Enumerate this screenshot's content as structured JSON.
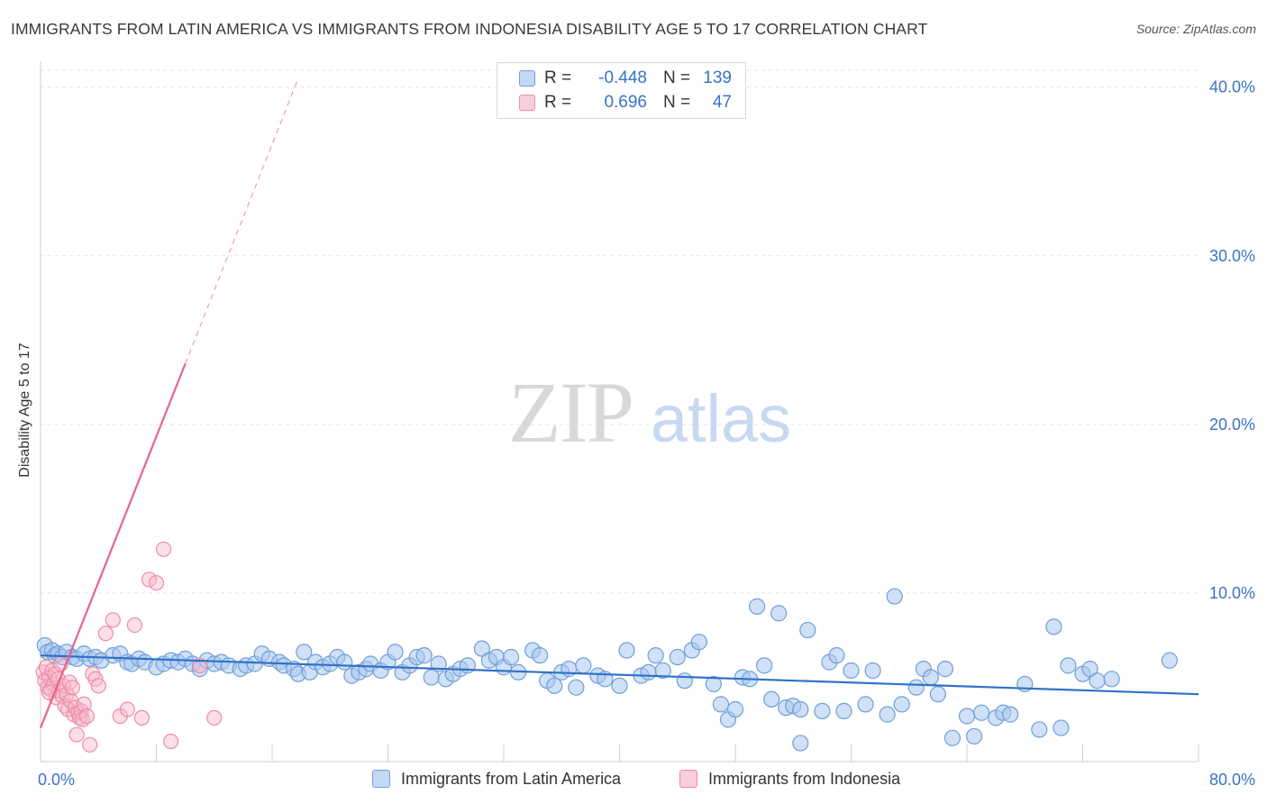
{
  "title": "IMMIGRANTS FROM LATIN AMERICA VS IMMIGRANTS FROM INDONESIA DISABILITY AGE 5 TO 17 CORRELATION CHART",
  "source": "Source: ZipAtlas.com",
  "watermark": {
    "zip": "ZIP",
    "atlas": "atlas"
  },
  "colors": {
    "blue_fill": "#a9c7ef",
    "blue_stroke": "#6f9fd8",
    "blue_line": "#2f72c8",
    "pink_fill": "#f7b7ca",
    "pink_stroke": "#ef8aa8",
    "pink_line": "#e8638f",
    "value_text": "#3a72c8",
    "grid": "#e3e3e3"
  },
  "legend": {
    "rows": [
      {
        "r_label": "R =",
        "r_value": "-0.448",
        "n_label": "N =",
        "n_value": "139"
      },
      {
        "r_label": "R =",
        "r_value": "0.696",
        "n_label": "N =",
        "n_value": "47"
      }
    ]
  },
  "bottom_legend": {
    "series1": "Immigrants from Latin America",
    "series2": "Immigrants from Indonesia"
  },
  "chart_data": {
    "type": "scatter",
    "title": "IMMIGRANTS FROM LATIN AMERICA VS IMMIGRANTS FROM INDONESIA DISABILITY AGE 5 TO 17 CORRELATION CHART",
    "xlabel": "",
    "ylabel": "Disability Age 5 to 17",
    "xlim": [
      0,
      80
    ],
    "ylim": [
      0,
      41
    ],
    "x_ticks_labeled": [
      {
        "value": 0,
        "label": "0.0%"
      },
      {
        "value": 80,
        "label": "80.0%"
      }
    ],
    "y_ticks": [
      {
        "value": 10,
        "label": "10.0%"
      },
      {
        "value": 20,
        "label": "20.0%"
      },
      {
        "value": 30,
        "label": "30.0%"
      },
      {
        "value": 40,
        "label": "40.0%"
      }
    ],
    "x_minor_ticks": [
      0,
      8,
      16,
      24,
      32,
      40,
      48,
      56,
      64,
      72,
      80
    ],
    "series": [
      {
        "name": "Immigrants from Latin America",
        "r": -0.448,
        "n": 139,
        "trend": {
          "x": [
            0,
            80
          ],
          "y": [
            6.3,
            4.0
          ]
        },
        "points": [
          [
            0.3,
            6.9
          ],
          [
            0.5,
            6.5
          ],
          [
            0.8,
            6.6
          ],
          [
            1.0,
            6.3
          ],
          [
            1.2,
            6.4
          ],
          [
            1.5,
            6.2
          ],
          [
            1.8,
            6.5
          ],
          [
            2.2,
            6.2
          ],
          [
            2.5,
            6.1
          ],
          [
            3.0,
            6.4
          ],
          [
            3.4,
            6.1
          ],
          [
            3.8,
            6.2
          ],
          [
            4.2,
            6.0
          ],
          [
            5.0,
            6.3
          ],
          [
            5.5,
            6.4
          ],
          [
            6.0,
            5.9
          ],
          [
            6.3,
            5.8
          ],
          [
            6.8,
            6.1
          ],
          [
            7.2,
            5.9
          ],
          [
            8.0,
            5.6
          ],
          [
            8.5,
            5.8
          ],
          [
            9.0,
            6.0
          ],
          [
            9.5,
            5.9
          ],
          [
            10.0,
            6.1
          ],
          [
            10.5,
            5.8
          ],
          [
            11.0,
            5.5
          ],
          [
            11.5,
            6.0
          ],
          [
            12.0,
            5.8
          ],
          [
            12.5,
            5.9
          ],
          [
            13.0,
            5.7
          ],
          [
            13.8,
            5.5
          ],
          [
            14.2,
            5.7
          ],
          [
            14.8,
            5.8
          ],
          [
            15.3,
            6.4
          ],
          [
            15.8,
            6.1
          ],
          [
            16.5,
            5.9
          ],
          [
            16.8,
            5.7
          ],
          [
            17.5,
            5.5
          ],
          [
            17.8,
            5.2
          ],
          [
            18.2,
            6.5
          ],
          [
            18.6,
            5.3
          ],
          [
            19.0,
            5.9
          ],
          [
            19.5,
            5.6
          ],
          [
            20.0,
            5.8
          ],
          [
            20.5,
            6.2
          ],
          [
            21.0,
            5.9
          ],
          [
            21.5,
            5.1
          ],
          [
            22.0,
            5.3
          ],
          [
            22.5,
            5.5
          ],
          [
            22.8,
            5.8
          ],
          [
            23.5,
            5.4
          ],
          [
            24.0,
            5.9
          ],
          [
            24.5,
            6.5
          ],
          [
            25.0,
            5.3
          ],
          [
            25.5,
            5.7
          ],
          [
            26.0,
            6.2
          ],
          [
            26.5,
            6.3
          ],
          [
            27.0,
            5.0
          ],
          [
            27.5,
            5.8
          ],
          [
            28.0,
            4.9
          ],
          [
            28.5,
            5.2
          ],
          [
            29.0,
            5.5
          ],
          [
            29.5,
            5.7
          ],
          [
            30.5,
            6.7
          ],
          [
            31.0,
            6.0
          ],
          [
            31.5,
            6.2
          ],
          [
            32.0,
            5.6
          ],
          [
            32.5,
            6.2
          ],
          [
            33.0,
            5.3
          ],
          [
            34.0,
            6.6
          ],
          [
            34.5,
            6.3
          ],
          [
            35.0,
            4.8
          ],
          [
            35.5,
            4.5
          ],
          [
            36.0,
            5.3
          ],
          [
            36.5,
            5.5
          ],
          [
            37.0,
            4.4
          ],
          [
            37.5,
            5.7
          ],
          [
            38.5,
            5.1
          ],
          [
            39.0,
            4.9
          ],
          [
            40.0,
            4.5
          ],
          [
            40.5,
            6.6
          ],
          [
            41.5,
            5.1
          ],
          [
            42.0,
            5.3
          ],
          [
            42.5,
            6.3
          ],
          [
            43.0,
            5.4
          ],
          [
            44.0,
            6.2
          ],
          [
            44.5,
            4.8
          ],
          [
            45.0,
            6.6
          ],
          [
            45.5,
            7.1
          ],
          [
            46.5,
            4.6
          ],
          [
            47.0,
            3.4
          ],
          [
            47.5,
            2.5
          ],
          [
            48.0,
            3.1
          ],
          [
            48.5,
            5.0
          ],
          [
            49.0,
            4.9
          ],
          [
            49.5,
            9.2
          ],
          [
            50.0,
            5.7
          ],
          [
            50.5,
            3.7
          ],
          [
            51.0,
            8.8
          ],
          [
            51.5,
            3.2
          ],
          [
            52.0,
            3.3
          ],
          [
            52.5,
            3.1
          ],
          [
            53.0,
            7.8
          ],
          [
            54.0,
            3.0
          ],
          [
            54.5,
            5.9
          ],
          [
            55.0,
            6.3
          ],
          [
            55.5,
            3.0
          ],
          [
            56.0,
            5.4
          ],
          [
            57.0,
            3.4
          ],
          [
            57.5,
            5.4
          ],
          [
            58.5,
            2.8
          ],
          [
            59.0,
            9.8
          ],
          [
            59.5,
            3.4
          ],
          [
            60.5,
            4.4
          ],
          [
            61.0,
            5.5
          ],
          [
            61.5,
            5.0
          ],
          [
            62.0,
            4.0
          ],
          [
            62.5,
            5.5
          ],
          [
            63.0,
            1.4
          ],
          [
            64.0,
            2.7
          ],
          [
            64.5,
            1.5
          ],
          [
            65.0,
            2.9
          ],
          [
            66.0,
            2.6
          ],
          [
            66.5,
            2.9
          ],
          [
            67.0,
            2.8
          ],
          [
            68.0,
            4.6
          ],
          [
            69.0,
            1.9
          ],
          [
            70.0,
            8.0
          ],
          [
            70.5,
            2.0
          ],
          [
            71.0,
            5.7
          ],
          [
            72.0,
            5.2
          ],
          [
            72.5,
            5.5
          ],
          [
            73.0,
            4.8
          ],
          [
            74.0,
            4.9
          ],
          [
            78.0,
            6.0
          ],
          [
            52.5,
            1.1
          ]
        ]
      },
      {
        "name": "Immigrants from Indonesia",
        "r": 0.696,
        "n": 47,
        "trend": {
          "x": [
            0,
            10
          ],
          "y": [
            2.0,
            23.6
          ]
        },
        "trend_dashed": {
          "x": [
            10,
            17.7
          ],
          "y": [
            23.6,
            40.3
          ]
        },
        "points": [
          [
            0.2,
            5.3
          ],
          [
            0.3,
            4.8
          ],
          [
            0.4,
            5.6
          ],
          [
            0.5,
            4.4
          ],
          [
            0.6,
            5.0
          ],
          [
            0.7,
            4.3
          ],
          [
            0.8,
            5.4
          ],
          [
            0.9,
            4.6
          ],
          [
            1.0,
            5.2
          ],
          [
            1.1,
            3.8
          ],
          [
            1.2,
            4.9
          ],
          [
            1.3,
            4.2
          ],
          [
            1.4,
            5.8
          ],
          [
            1.5,
            3.9
          ],
          [
            1.6,
            4.5
          ],
          [
            1.7,
            3.3
          ],
          [
            1.8,
            4.0
          ],
          [
            1.9,
            3.1
          ],
          [
            2.0,
            4.7
          ],
          [
            2.1,
            3.6
          ],
          [
            2.2,
            4.4
          ],
          [
            2.3,
            2.8
          ],
          [
            2.4,
            3.2
          ],
          [
            2.5,
            1.6
          ],
          [
            2.6,
            2.9
          ],
          [
            2.7,
            2.6
          ],
          [
            2.8,
            3.0
          ],
          [
            2.9,
            2.5
          ],
          [
            3.0,
            3.4
          ],
          [
            3.2,
            2.7
          ],
          [
            3.4,
            1.0
          ],
          [
            3.6,
            5.2
          ],
          [
            3.8,
            4.9
          ],
          [
            4.0,
            4.5
          ],
          [
            4.5,
            7.6
          ],
          [
            5.0,
            8.4
          ],
          [
            5.5,
            2.7
          ],
          [
            6.0,
            3.1
          ],
          [
            6.5,
            8.1
          ],
          [
            7.0,
            2.6
          ],
          [
            7.5,
            10.8
          ],
          [
            8.0,
            10.6
          ],
          [
            8.5,
            12.6
          ],
          [
            9.0,
            1.2
          ],
          [
            11.0,
            5.7
          ],
          [
            0.6,
            4.1
          ],
          [
            12.0,
            2.6
          ]
        ]
      }
    ]
  }
}
